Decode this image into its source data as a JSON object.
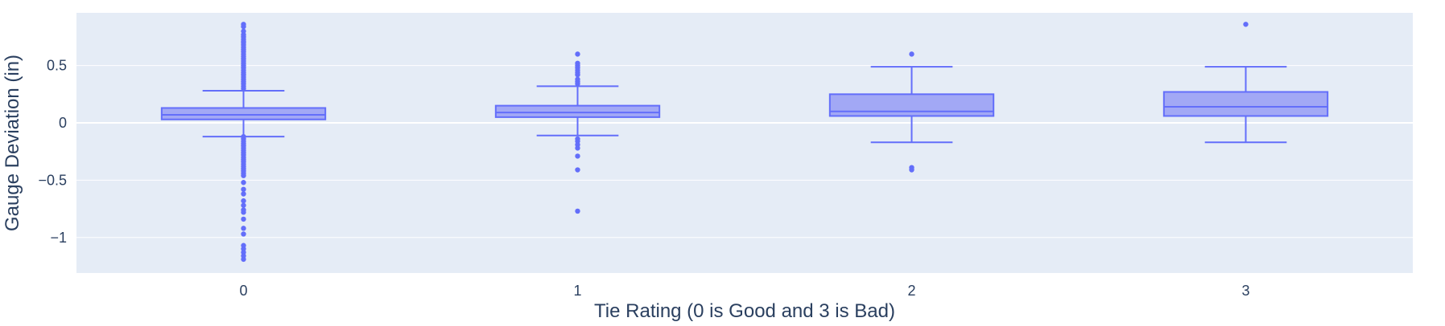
{
  "chart_data": {
    "type": "box",
    "title": "",
    "xlabel": "Tie Rating (0 is Good and 3 is Bad)",
    "ylabel": "Gauge Deviation (in)",
    "ylim": [
      -1.31,
      0.96
    ],
    "yticks": [
      {
        "value": 0.5,
        "label": "0.5"
      },
      {
        "value": 0,
        "label": "0"
      },
      {
        "value": -0.5,
        "label": "−0.5"
      },
      {
        "value": -1,
        "label": "−1"
      }
    ],
    "grid": true,
    "legend": "none",
    "colors": {
      "plot_bg": "#e5ecf6",
      "grid": "#ffffff",
      "box_line": "#636efa",
      "box_fill": "#a2a8f5",
      "text": "#2a3f5f"
    },
    "categories": [
      "0",
      "1",
      "2",
      "3"
    ],
    "boxes": [
      {
        "category": "0",
        "lower_whisker": -0.12,
        "q1": 0.03,
        "median": 0.07,
        "q3": 0.13,
        "upper_whisker": 0.28,
        "outliers": [
          0.86,
          0.84,
          0.8,
          0.77,
          0.75,
          0.73,
          0.71,
          0.7,
          0.68,
          0.66,
          0.64,
          0.62,
          0.6,
          0.58,
          0.56,
          0.54,
          0.52,
          0.5,
          0.48,
          0.46,
          0.44,
          0.42,
          0.4,
          0.38,
          0.36,
          0.34,
          0.32,
          0.3,
          -0.12,
          -0.14,
          -0.16,
          -0.18,
          -0.2,
          -0.22,
          -0.24,
          -0.26,
          -0.28,
          -0.3,
          -0.32,
          -0.34,
          -0.36,
          -0.38,
          -0.4,
          -0.42,
          -0.44,
          -0.46,
          -0.52,
          -0.58,
          -0.62,
          -0.68,
          -0.72,
          -0.76,
          -0.78,
          -0.84,
          -0.92,
          -0.97,
          -1.07,
          -1.1,
          -1.13,
          -1.16,
          -1.19
        ]
      },
      {
        "category": "1",
        "lower_whisker": -0.11,
        "q1": 0.05,
        "median": 0.09,
        "q3": 0.15,
        "upper_whisker": 0.32,
        "outliers": [
          0.6,
          0.52,
          0.5,
          0.48,
          0.46,
          0.44,
          0.42,
          0.38,
          0.36,
          0.34,
          -0.14,
          -0.16,
          -0.19,
          -0.22,
          -0.29,
          -0.41,
          -0.77
        ]
      },
      {
        "category": "2",
        "lower_whisker": -0.17,
        "q1": 0.06,
        "median": 0.1,
        "q3": 0.25,
        "upper_whisker": 0.49,
        "outliers": [
          0.6,
          -0.39,
          -0.41
        ]
      },
      {
        "category": "3",
        "lower_whisker": -0.17,
        "q1": 0.06,
        "median": 0.14,
        "q3": 0.27,
        "upper_whisker": 0.49,
        "outliers": [
          0.86
        ]
      }
    ]
  }
}
